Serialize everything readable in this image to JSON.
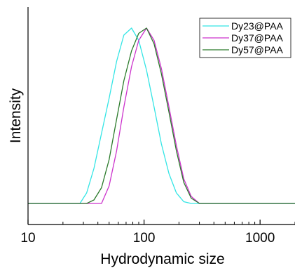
{
  "chart_data": {
    "type": "line",
    "xlabel": "Hydrodynamic size",
    "ylabel": "Intensity",
    "xscale": "log",
    "xlim": [
      10,
      2000
    ],
    "ylim": [
      -0.12,
      1.12
    ],
    "xticks": [
      10,
      100,
      1000
    ],
    "xtick_labels": [
      "10",
      "100",
      "1000"
    ],
    "minor_ticks": true,
    "grid": false,
    "legend_position": "top-right",
    "series": [
      {
        "name": "Dy23@PAA",
        "color": "#33e5e5",
        "x": [
          10,
          28,
          32,
          37,
          43,
          50,
          58,
          67,
          78,
          90,
          105,
          122,
          141,
          164,
          190,
          220,
          255,
          300,
          2000
        ],
        "y": [
          0,
          0,
          0.06,
          0.2,
          0.4,
          0.6,
          0.81,
          0.96,
          1.0,
          0.93,
          0.76,
          0.55,
          0.34,
          0.17,
          0.06,
          0.01,
          0,
          0,
          0
        ]
      },
      {
        "name": "Dy37@PAA",
        "color": "#cc33cc",
        "x": [
          10,
          37,
          43,
          50,
          58,
          67,
          78,
          90,
          105,
          122,
          141,
          164,
          190,
          220,
          255,
          300,
          2000
        ],
        "y": [
          0,
          0,
          0,
          0.1,
          0.3,
          0.55,
          0.78,
          0.93,
          1.0,
          0.93,
          0.77,
          0.55,
          0.33,
          0.14,
          0.04,
          0,
          0
        ]
      },
      {
        "name": "Dy57@PAA",
        "color": "#2a7a2a",
        "x": [
          10,
          32,
          37,
          43,
          50,
          58,
          67,
          78,
          90,
          105,
          122,
          141,
          164,
          190,
          220,
          255,
          300,
          2000
        ],
        "y": [
          0,
          0,
          0.02,
          0.09,
          0.25,
          0.48,
          0.7,
          0.87,
          0.97,
          1.0,
          0.91,
          0.74,
          0.52,
          0.3,
          0.12,
          0.03,
          0,
          0
        ]
      }
    ]
  }
}
